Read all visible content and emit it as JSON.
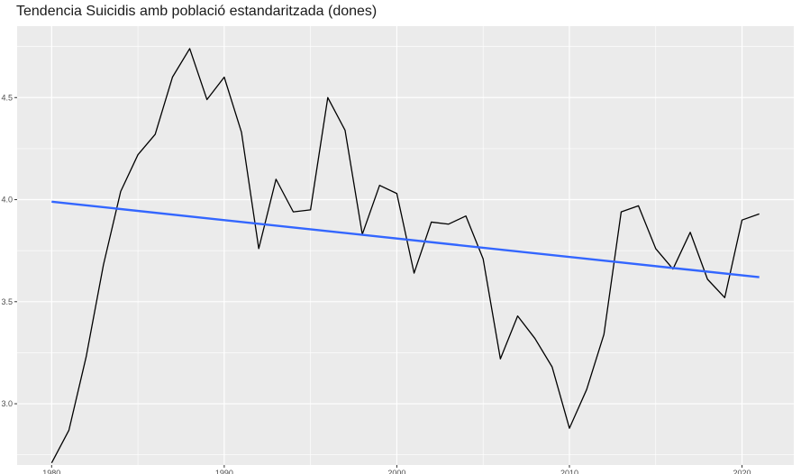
{
  "chart_data": {
    "type": "line",
    "title": "Tendencia Suicidis amb població estandaritzada (dones)",
    "xlabel": "",
    "ylabel": "",
    "xlim": [
      1978,
      2023
    ],
    "ylim": [
      2.7,
      4.85
    ],
    "x_ticks": [
      {
        "value": 1980,
        "label": "1980"
      },
      {
        "value": 1990,
        "label": "1990"
      },
      {
        "value": 2000,
        "label": "2000"
      },
      {
        "value": 2010,
        "label": "2010"
      },
      {
        "value": 2020,
        "label": "2020"
      }
    ],
    "y_ticks": [
      {
        "value": 3.0,
        "label": "3.0"
      },
      {
        "value": 3.5,
        "label": "3.5"
      },
      {
        "value": 4.0,
        "label": "4.0"
      },
      {
        "value": 4.5,
        "label": "4.5"
      }
    ],
    "grid": true,
    "series": [
      {
        "color": "#000000",
        "x": [
          1980,
          1981,
          1982,
          1983,
          1984,
          1985,
          1986,
          1987,
          1988,
          1989,
          1990,
          1991,
          1992,
          1993,
          1994,
          1995,
          1996,
          1997,
          1998,
          1999,
          2000,
          2001,
          2002,
          2003,
          2004,
          2005,
          2006,
          2007,
          2008,
          2009,
          2010,
          2011,
          2012,
          2013,
          2014,
          2015,
          2016,
          2017,
          2018,
          2019,
          2020,
          2021
        ],
        "values": [
          2.71,
          2.87,
          3.23,
          3.68,
          4.04,
          4.22,
          4.32,
          4.6,
          4.74,
          4.49,
          4.6,
          4.33,
          3.76,
          4.1,
          3.94,
          3.95,
          4.5,
          4.34,
          3.83,
          4.07,
          4.03,
          3.64,
          3.89,
          3.88,
          3.92,
          3.71,
          3.22,
          3.43,
          3.32,
          3.18,
          2.88,
          3.07,
          3.34,
          3.94,
          3.97,
          3.76,
          3.66,
          3.84,
          3.61,
          3.52,
          3.9,
          3.93
        ]
      },
      {
        "color": "#3366ff",
        "x": [
          1980,
          2021
        ],
        "values": [
          3.99,
          3.62
        ]
      }
    ]
  }
}
